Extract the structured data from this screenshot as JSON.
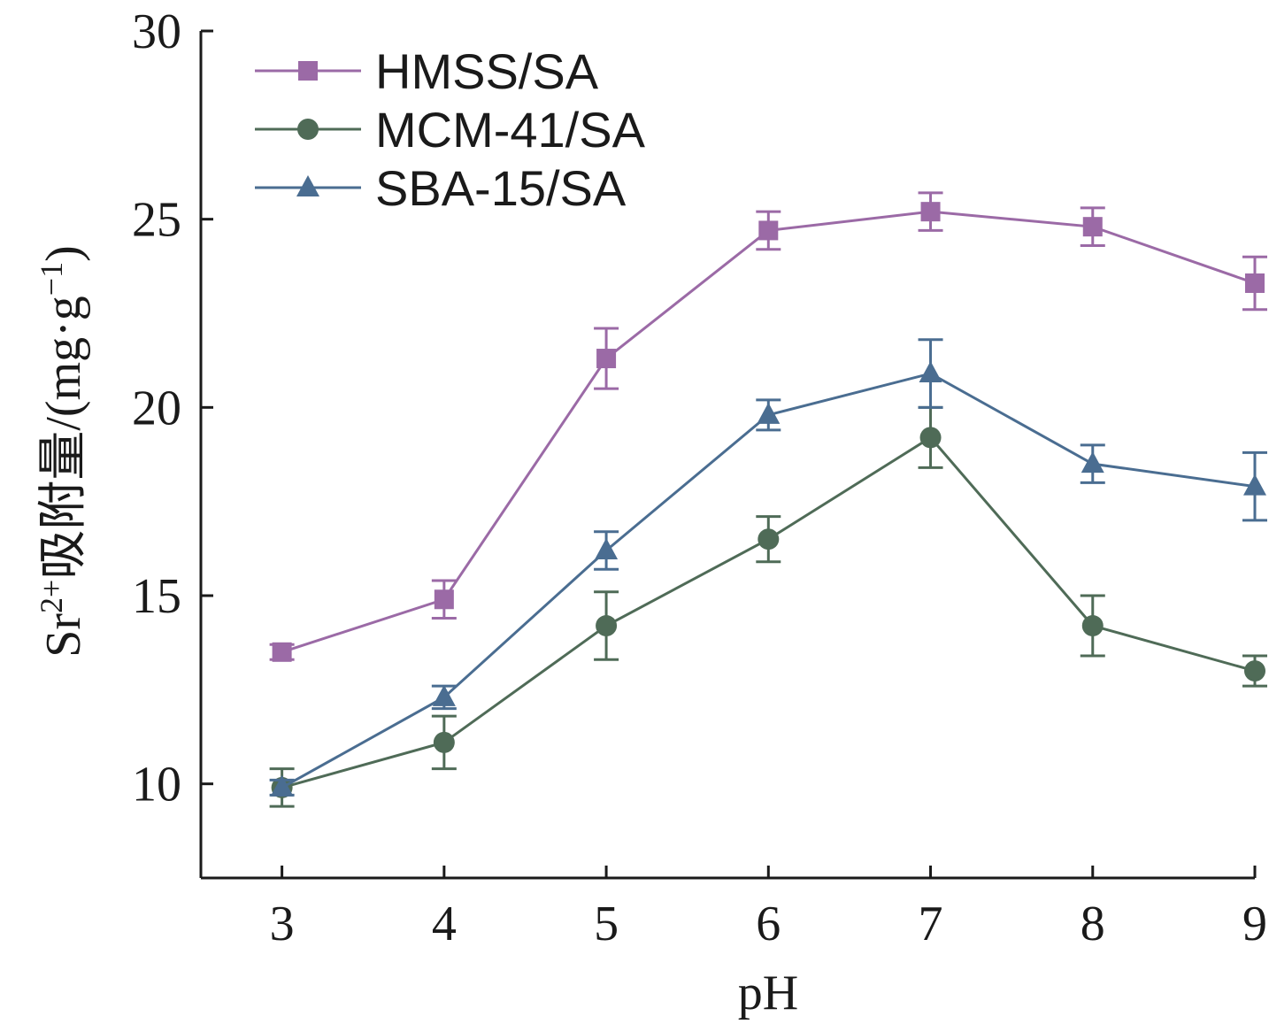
{
  "chart_data": {
    "type": "line",
    "xlabel": "pH",
    "ylabel_parts": {
      "base": "Sr",
      "superscript": "2+",
      "text": "吸附量/(mg·g",
      "unit_sup": "−1",
      "close": ")"
    },
    "x": [
      3,
      4,
      5,
      6,
      7,
      8,
      9
    ],
    "xlim": [
      2.5,
      9
    ],
    "ylim": [
      7.5,
      30
    ],
    "x_ticks": [
      "3",
      "4",
      "5",
      "6",
      "7",
      "8",
      "9"
    ],
    "y_ticks": [
      "10",
      "15",
      "20",
      "25",
      "30"
    ],
    "y_tick_values": [
      10,
      15,
      20,
      25,
      30
    ],
    "grid": false,
    "legend_position": "top-left",
    "series": [
      {
        "name": "HMSS/SA",
        "marker": "square",
        "color": "#9b6aa6",
        "values": [
          13.5,
          14.9,
          21.3,
          24.7,
          25.2,
          24.8,
          23.3
        ],
        "errors": [
          0.2,
          0.5,
          0.8,
          0.5,
          0.5,
          0.5,
          0.7
        ]
      },
      {
        "name": "MCM-41/SA",
        "marker": "circle",
        "color": "#4f6b57",
        "values": [
          9.9,
          11.1,
          14.2,
          16.5,
          19.2,
          14.2,
          13.0
        ],
        "errors": [
          0.5,
          0.7,
          0.9,
          0.6,
          0.8,
          0.8,
          0.4
        ]
      },
      {
        "name": "SBA-15/SA",
        "marker": "triangle",
        "color": "#4a6d91",
        "values": [
          9.9,
          12.3,
          16.2,
          19.8,
          20.9,
          18.5,
          17.9
        ],
        "errors": [
          0.2,
          0.3,
          0.5,
          0.4,
          0.9,
          0.5,
          0.9
        ]
      }
    ]
  }
}
